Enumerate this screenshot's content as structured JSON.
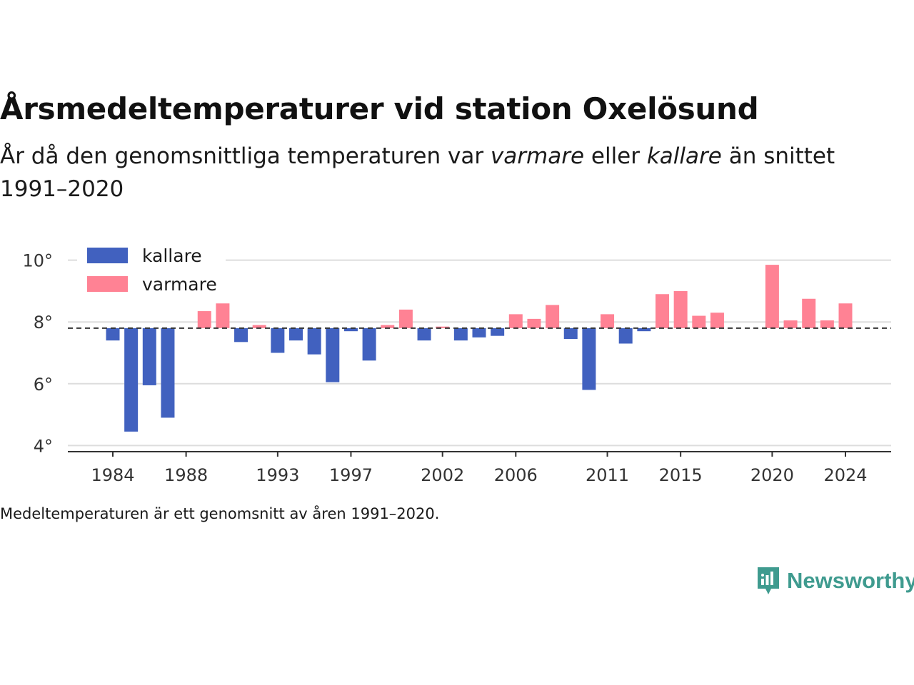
{
  "title": "Årsmedeltemperaturer vid station Oxelösund",
  "subtitle": {
    "part1": "År då den genomsnittliga temperaturen var ",
    "em1": "varmare",
    "part2": " eller ",
    "em2": "kallare",
    "part3": " än snittet 1991–2020"
  },
  "footnote": "Medeltemperaturen är ett genomsnitt av åren 1991–2020.",
  "logo": {
    "text": "Newsworthy",
    "icon": "newsworthy-logo-icon"
  },
  "colors": {
    "kallare": "#4161bf",
    "varmare": "#ff8294",
    "brand": "#3f9b8f"
  },
  "chart_data": {
    "type": "bar",
    "baseline": 7.8,
    "baseline_style": "dashed",
    "ylim": [
      3.8,
      10.8
    ],
    "yticks": [
      4,
      6,
      8,
      10
    ],
    "ytick_labels": [
      "4°",
      "6°",
      "8°",
      "10°"
    ],
    "xticks": [
      1984,
      1988,
      1993,
      1997,
      2002,
      2006,
      2011,
      2015,
      2020,
      2024
    ],
    "xtick_labels": [
      "1984",
      "1988",
      "1993",
      "1997",
      "2002",
      "2006",
      "2011",
      "2015",
      "2020",
      "2024"
    ],
    "grid": "horizontal",
    "legend_position": "top-left",
    "series": [
      {
        "name": "kallare",
        "color": "#4161bf"
      },
      {
        "name": "varmare",
        "color": "#ff8294"
      }
    ],
    "years": [
      1984,
      1985,
      1986,
      1987,
      1988,
      1989,
      1990,
      1991,
      1992,
      1993,
      1994,
      1995,
      1996,
      1997,
      1998,
      1999,
      2000,
      2001,
      2002,
      2003,
      2004,
      2005,
      2006,
      2007,
      2008,
      2009,
      2010,
      2011,
      2012,
      2013,
      2014,
      2015,
      2016,
      2017,
      2018,
      2019,
      2020,
      2021,
      2022,
      2023,
      2024
    ],
    "values": [
      7.4,
      4.45,
      5.95,
      4.9,
      null,
      8.35,
      8.6,
      7.35,
      7.9,
      7.0,
      7.4,
      6.95,
      6.05,
      7.7,
      6.75,
      7.9,
      8.4,
      7.4,
      7.85,
      7.4,
      7.5,
      7.55,
      8.25,
      8.1,
      8.55,
      7.45,
      5.8,
      8.25,
      7.3,
      7.7,
      8.9,
      9.0,
      8.2,
      8.3,
      null,
      null,
      9.85,
      8.05,
      8.75,
      8.05,
      8.6
    ]
  }
}
